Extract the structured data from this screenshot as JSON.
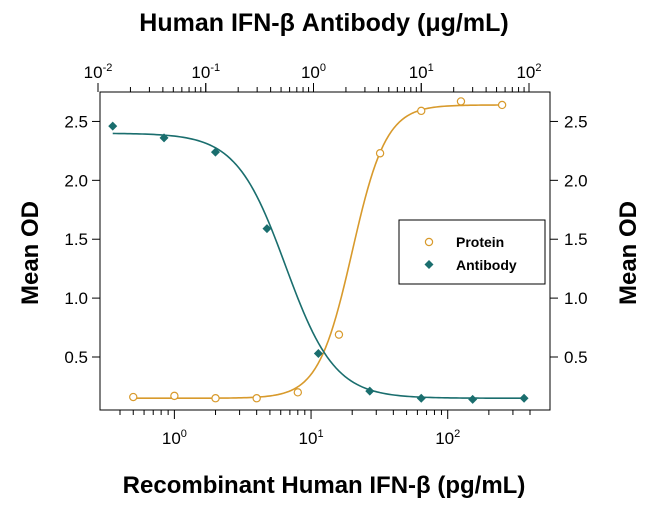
{
  "chart_data": {
    "type": "scatter",
    "title": "Human IFN-β Antibody (μg/mL)",
    "xlabel": "Recombinant Human IFN-β (pg/mL)",
    "ylabel": "Mean OD",
    "y2label": "Mean OD",
    "x_scale": "log",
    "x_range": [
      0.4,
      400
    ],
    "x_ticks": [
      {
        "value": 1,
        "base": "10",
        "exp": "0"
      },
      {
        "value": 10,
        "base": "10",
        "exp": "1"
      },
      {
        "value": 100,
        "base": "10",
        "exp": "2"
      }
    ],
    "x2_scale": "log",
    "x2_range": [
      0.01,
      100
    ],
    "x2_ticks": [
      {
        "value": 0.01,
        "base": "10",
        "exp": "-2"
      },
      {
        "value": 0.1,
        "base": "10",
        "exp": "-1"
      },
      {
        "value": 1,
        "base": "10",
        "exp": "0"
      },
      {
        "value": 10,
        "base": "10",
        "exp": "1"
      },
      {
        "value": 100,
        "base": "10",
        "exp": "2"
      }
    ],
    "ylim": [
      0.05,
      2.75
    ],
    "y_ticks": [
      "0.5",
      "1.0",
      "1.5",
      "2.0",
      "2.5"
    ],
    "legend_position": "center-right",
    "series": [
      {
        "name": "Protein",
        "axis": "bottom",
        "marker": "open-circle",
        "color": "#d89a2c",
        "x": [
          0.5,
          1.0,
          2.0,
          4.0,
          8.0,
          16.0,
          32.0,
          64.0,
          125.0,
          250.0
        ],
        "y": [
          0.16,
          0.17,
          0.15,
          0.15,
          0.2,
          0.69,
          2.23,
          2.59,
          2.67,
          2.64
        ],
        "fit": {
          "bottom": 0.15,
          "top": 2.64,
          "ec50": 20.0,
          "hill": 3.5
        }
      },
      {
        "name": "Antibody",
        "axis": "top",
        "marker": "filled-diamond",
        "color": "#1a6e6e",
        "x": [
          0.0137,
          0.041,
          0.123,
          0.37,
          1.11,
          3.33,
          10.0,
          30.0,
          90.0
        ],
        "y": [
          2.46,
          2.36,
          2.24,
          1.59,
          0.53,
          0.21,
          0.15,
          0.14,
          0.15
        ],
        "fit": {
          "bottom": 0.15,
          "top": 2.4,
          "ec50": 0.55,
          "hill": 1.9
        }
      }
    ]
  }
}
